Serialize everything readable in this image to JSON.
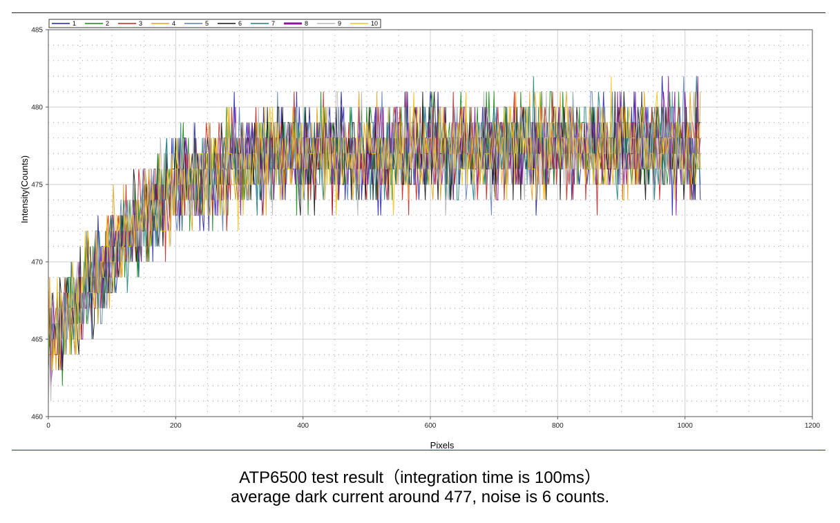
{
  "chart_data": {
    "type": "line",
    "xlabel": "Pixels",
    "ylabel": "Intensity(Counts)",
    "xlim": [
      0,
      1200
    ],
    "ylim": [
      460,
      485
    ],
    "x_ticks": [
      0,
      200,
      400,
      600,
      800,
      1000,
      1200
    ],
    "y_ticks": [
      460,
      465,
      470,
      475,
      480,
      485
    ],
    "grid": true,
    "legend_placement": "top-left",
    "series": [
      {
        "name": "1",
        "color": "#1f1fb4"
      },
      {
        "name": "2",
        "color": "#138a13"
      },
      {
        "name": "3",
        "color": "#d01c1c"
      },
      {
        "name": "4",
        "color": "#e6a21a"
      },
      {
        "name": "5",
        "color": "#5b7fb5"
      },
      {
        "name": "6",
        "color": "#111111"
      },
      {
        "name": "7",
        "color": "#1b7f7f"
      },
      {
        "name": "8",
        "color": "#8a1a9a"
      },
      {
        "name": "9",
        "color": "#b7b7b7"
      },
      {
        "name": "10",
        "color": "#f2c21b"
      }
    ],
    "pixel_range": [
      0,
      1024
    ],
    "baseline_curve": [
      {
        "x": 0,
        "y": 464.5
      },
      {
        "x": 50,
        "y": 467.5
      },
      {
        "x": 100,
        "y": 470.5
      },
      {
        "x": 150,
        "y": 473
      },
      {
        "x": 200,
        "y": 474.8
      },
      {
        "x": 250,
        "y": 475.8
      },
      {
        "x": 300,
        "y": 476.6
      },
      {
        "x": 400,
        "y": 477
      },
      {
        "x": 600,
        "y": 477.3
      },
      {
        "x": 800,
        "y": 477.5
      },
      {
        "x": 1024,
        "y": 477.6
      }
    ],
    "noise_amplitude": 1.6
  },
  "caption": {
    "line1": "ATP6500 test result（integration time is 100ms）",
    "line2": "average dark current around 477, noise is 6 counts."
  }
}
